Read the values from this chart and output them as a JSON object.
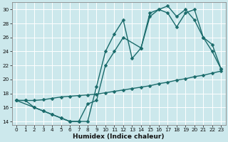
{
  "xlabel": "Humidex (Indice chaleur)",
  "bg_color": "#cce8ec",
  "grid_color": "#ffffff",
  "line_color": "#1a6b6b",
  "xlim": [
    -0.5,
    23.5
  ],
  "ylim": [
    13.5,
    31
  ],
  "xticks": [
    0,
    1,
    2,
    3,
    4,
    5,
    6,
    7,
    8,
    9,
    10,
    11,
    12,
    13,
    14,
    15,
    16,
    17,
    18,
    19,
    20,
    21,
    22,
    23
  ],
  "yticks": [
    14,
    16,
    18,
    20,
    22,
    24,
    26,
    28,
    30
  ],
  "curve1_x": [
    0,
    1,
    2,
    3,
    4,
    5,
    6,
    7,
    8,
    9,
    10,
    11,
    12,
    13,
    14,
    15,
    16,
    17,
    18,
    19,
    20,
    21,
    22,
    23
  ],
  "curve1_y": [
    17,
    17,
    16,
    15.5,
    15,
    14.5,
    14,
    14,
    14,
    19,
    24,
    26.5,
    28.5,
    23,
    24.5,
    29.5,
    30,
    30.5,
    29,
    30,
    28.5,
    26,
    24,
    21.5
  ],
  "curve2_x": [
    0,
    2,
    3,
    4,
    5,
    6,
    7,
    8,
    9,
    10,
    11,
    12,
    14,
    15,
    16,
    17,
    18,
    19,
    20,
    21,
    22,
    23
  ],
  "curve2_y": [
    17,
    16,
    15.5,
    15,
    14.5,
    14,
    14,
    16.5,
    17,
    22,
    24,
    26,
    24.5,
    29,
    30,
    29.5,
    27.5,
    29.5,
    30,
    26,
    25,
    21.5
  ],
  "curve3_x": [
    0,
    1,
    2,
    3,
    4,
    5,
    6,
    7,
    8,
    9,
    10,
    11,
    12,
    13,
    14,
    15,
    16,
    17,
    18,
    19,
    20,
    21,
    22,
    23
  ],
  "curve3_y": [
    17,
    17,
    17,
    17.1,
    17.3,
    17.5,
    17.6,
    17.7,
    17.8,
    17.9,
    18.1,
    18.3,
    18.5,
    18.7,
    18.9,
    19.1,
    19.4,
    19.6,
    19.9,
    20.1,
    20.4,
    20.6,
    20.9,
    21.2
  ],
  "marker_size": 2.5,
  "line_width": 1.0,
  "tick_fontsize": 5.2,
  "xlabel_fontsize": 6.5
}
